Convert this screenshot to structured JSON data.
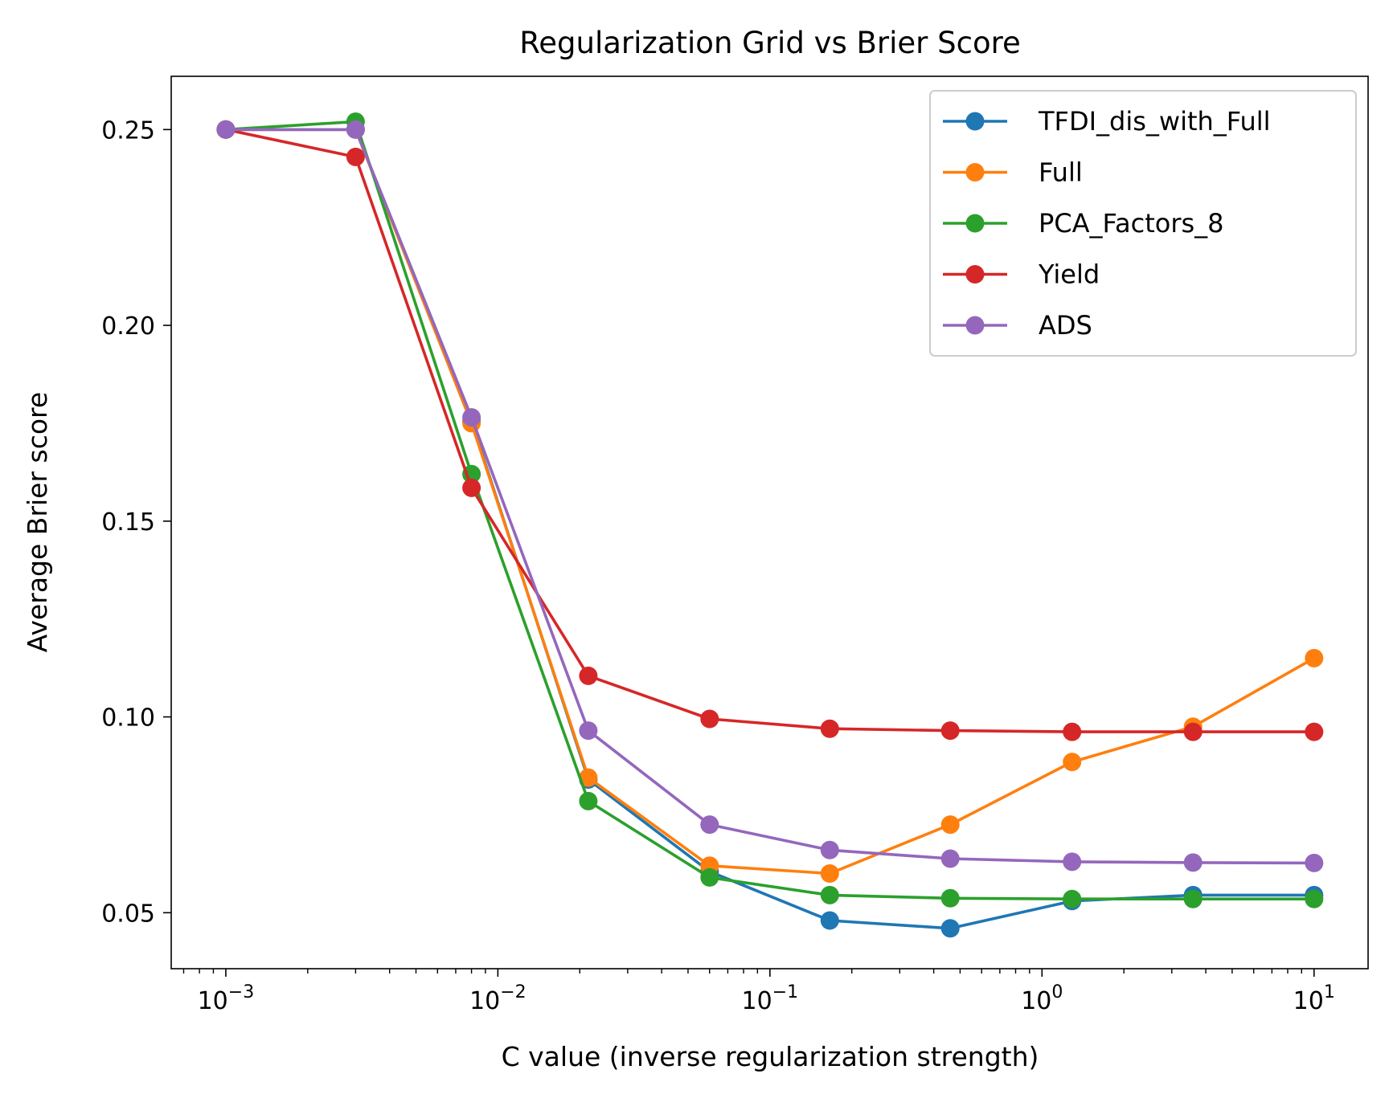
{
  "chart_data": {
    "type": "line",
    "title": "Regularization Grid vs Brier Score",
    "xlabel": "C value (inverse regularization strength)",
    "ylabel": "Average Brier score",
    "x_scale": "log",
    "xlim": [
      0.00063,
      15.8
    ],
    "ylim": [
      0.0357,
      0.2636
    ],
    "x_ticks": [
      {
        "value": 0.001,
        "base": "10",
        "exp": "−3"
      },
      {
        "value": 0.01,
        "base": "10",
        "exp": "−2"
      },
      {
        "value": 0.1,
        "base": "10",
        "exp": "−1"
      },
      {
        "value": 1,
        "base": "10",
        "exp": "0"
      },
      {
        "value": 10,
        "base": "10",
        "exp": "1"
      }
    ],
    "y_ticks": [
      {
        "value": 0.05,
        "label": "0.05"
      },
      {
        "value": 0.1,
        "label": "0.10"
      },
      {
        "value": 0.15,
        "label": "0.15"
      },
      {
        "value": 0.2,
        "label": "0.20"
      },
      {
        "value": 0.25,
        "label": "0.25"
      }
    ],
    "x": [
      0.001,
      0.003,
      0.008,
      0.0215,
      0.06,
      0.166,
      0.46,
      1.29,
      3.59,
      10
    ],
    "legend_position": "top-right",
    "grid": false,
    "series": [
      {
        "name": "TFDI_dis_with_Full",
        "color": "#1f77b4",
        "values": [
          0.25,
          0.25,
          0.1755,
          0.084,
          0.0605,
          0.048,
          0.046,
          0.053,
          0.0545,
          0.0545
        ]
      },
      {
        "name": "Full",
        "color": "#ff7f0e",
        "values": [
          0.25,
          0.25,
          0.175,
          0.0845,
          0.062,
          0.06,
          0.0725,
          0.0885,
          0.0975,
          0.115
        ]
      },
      {
        "name": "PCA_Factors_8",
        "color": "#2ca02c",
        "values": [
          0.25,
          0.252,
          0.162,
          0.0785,
          0.059,
          0.0545,
          0.0537,
          0.0535,
          0.0535,
          0.0535
        ]
      },
      {
        "name": "Yield",
        "color": "#d62728",
        "values": [
          0.25,
          0.243,
          0.1585,
          0.1105,
          0.0995,
          0.097,
          0.0965,
          0.0962,
          0.0962,
          0.0962
        ]
      },
      {
        "name": "ADS",
        "color": "#9467bd",
        "values": [
          0.25,
          0.25,
          0.1765,
          0.0965,
          0.0725,
          0.066,
          0.0638,
          0.063,
          0.0628,
          0.0627
        ]
      }
    ]
  }
}
